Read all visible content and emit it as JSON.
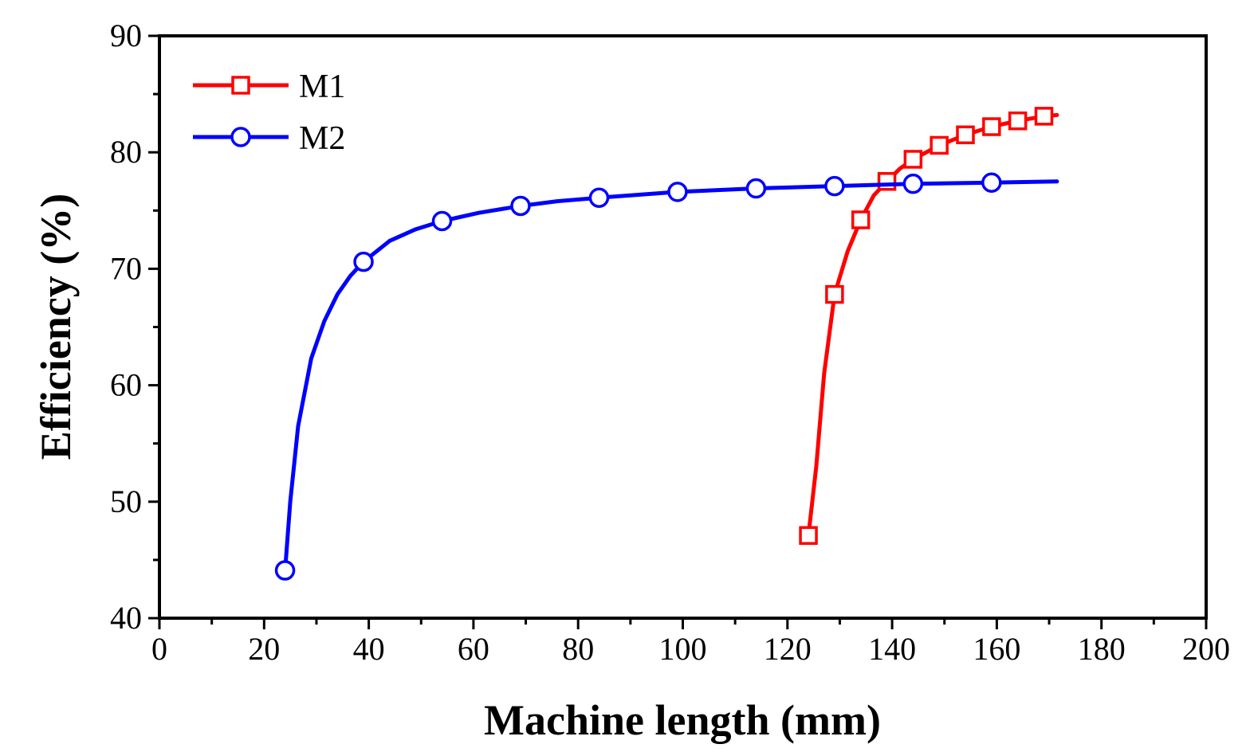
{
  "chart_data": {
    "type": "line",
    "title": "",
    "xlabel": "Machine length (mm)",
    "ylabel": "Efficiency (%)",
    "xlim": [
      0,
      200
    ],
    "ylim": [
      40,
      90
    ],
    "xticks": [
      0,
      20,
      40,
      60,
      80,
      100,
      120,
      140,
      160,
      180,
      200
    ],
    "yticks": [
      40,
      50,
      60,
      70,
      80,
      90
    ],
    "grid": false,
    "legend_position": "top-left",
    "series": [
      {
        "name": "M1",
        "color": "#ff0000",
        "marker": "square",
        "curve": [
          [
            124,
            47.1
          ],
          [
            125.5,
            53
          ],
          [
            127,
            61
          ],
          [
            129,
            67.8
          ],
          [
            131.5,
            71.5
          ],
          [
            134,
            74.2
          ],
          [
            136.5,
            76.3
          ],
          [
            139,
            77.5
          ],
          [
            141.5,
            78.6
          ],
          [
            144,
            79.4
          ],
          [
            149,
            80.6
          ],
          [
            154,
            81.5
          ],
          [
            159,
            82.2
          ],
          [
            164,
            82.7
          ],
          [
            169,
            83.1
          ],
          [
            171.5,
            83.2
          ]
        ],
        "points": [
          [
            124,
            47.1
          ],
          [
            129,
            67.8
          ],
          [
            134,
            74.2
          ],
          [
            139,
            77.5
          ],
          [
            144,
            79.4
          ],
          [
            149,
            80.6
          ],
          [
            154,
            81.5
          ],
          [
            159,
            82.2
          ],
          [
            164,
            82.7
          ],
          [
            169,
            83.1
          ]
        ]
      },
      {
        "name": "M2",
        "color": "#0000ff",
        "marker": "circle",
        "curve": [
          [
            24,
            44.1
          ],
          [
            25,
            50
          ],
          [
            26.5,
            56.5
          ],
          [
            29,
            62.3
          ],
          [
            31.5,
            65.5
          ],
          [
            34,
            67.8
          ],
          [
            36.5,
            69.4
          ],
          [
            39,
            70.6
          ],
          [
            44,
            72.4
          ],
          [
            49,
            73.4
          ],
          [
            54,
            74.1
          ],
          [
            61,
            74.8
          ],
          [
            69,
            75.4
          ],
          [
            76,
            75.8
          ],
          [
            84,
            76.1
          ],
          [
            99,
            76.6
          ],
          [
            114,
            76.9
          ],
          [
            129,
            77.1
          ],
          [
            144,
            77.3
          ],
          [
            159,
            77.4
          ],
          [
            171.5,
            77.5
          ]
        ],
        "points": [
          [
            24,
            44.1
          ],
          [
            39,
            70.6
          ],
          [
            54,
            74.1
          ],
          [
            69,
            75.4
          ],
          [
            84,
            76.1
          ],
          [
            99,
            76.6
          ],
          [
            114,
            76.9
          ],
          [
            129,
            77.1
          ],
          [
            144,
            77.3
          ],
          [
            159,
            77.4
          ]
        ]
      }
    ]
  }
}
